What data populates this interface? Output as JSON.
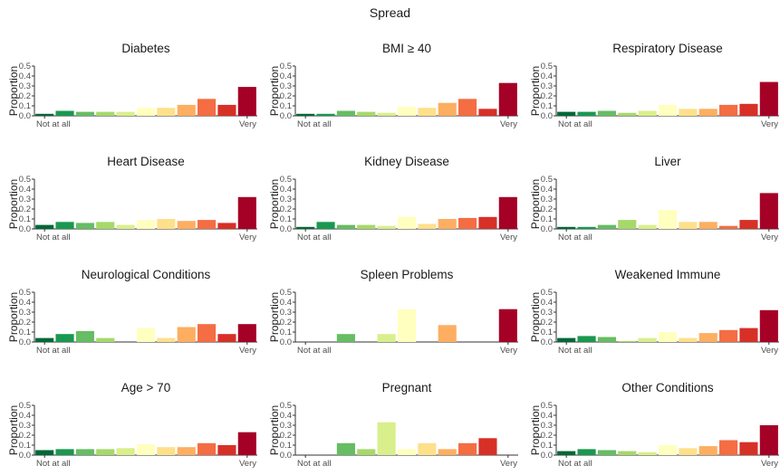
{
  "title": "Spread",
  "chart_data": {
    "type": "bar",
    "ylabel": "Proportion",
    "ylim": [
      0,
      0.5
    ],
    "yticks": [
      "0.0",
      "0.1",
      "0.2",
      "0.3",
      "0.4",
      "0.5"
    ],
    "x_start_label": "Not at all",
    "x_end_label": "Very",
    "categories": [
      1,
      2,
      3,
      4,
      5,
      6,
      7,
      8,
      9,
      10,
      11
    ],
    "colors": [
      "#006837",
      "#1a9850",
      "#66bd63",
      "#a6d96a",
      "#d9ef8b",
      "#ffffbf",
      "#fee08b",
      "#fdae61",
      "#f46d43",
      "#d73027",
      "#a50026"
    ],
    "grid": false,
    "panels": [
      {
        "title": "Diabetes",
        "values": [
          0.02,
          0.05,
          0.04,
          0.04,
          0.04,
          0.08,
          0.08,
          0.11,
          0.17,
          0.11,
          0.29
        ]
      },
      {
        "title": "BMI ≥ 40",
        "values": [
          0.02,
          0.02,
          0.05,
          0.04,
          0.03,
          0.09,
          0.08,
          0.13,
          0.17,
          0.07,
          0.33
        ]
      },
      {
        "title": "Respiratory Disease",
        "values": [
          0.04,
          0.04,
          0.05,
          0.03,
          0.05,
          0.11,
          0.07,
          0.07,
          0.11,
          0.12,
          0.34
        ]
      },
      {
        "title": "Heart Disease",
        "values": [
          0.04,
          0.07,
          0.06,
          0.07,
          0.04,
          0.09,
          0.1,
          0.08,
          0.09,
          0.06,
          0.32
        ]
      },
      {
        "title": "Kidney Disease",
        "values": [
          0.02,
          0.07,
          0.04,
          0.04,
          0.03,
          0.12,
          0.05,
          0.1,
          0.11,
          0.12,
          0.32
        ]
      },
      {
        "title": "Liver",
        "values": [
          0.02,
          0.02,
          0.04,
          0.09,
          0.04,
          0.19,
          0.07,
          0.07,
          0.03,
          0.09,
          0.36
        ]
      },
      {
        "title": "Neurological Conditions",
        "values": [
          0.04,
          0.08,
          0.11,
          0.04,
          0.0,
          0.14,
          0.04,
          0.15,
          0.18,
          0.08,
          0.18
        ]
      },
      {
        "title": "Spleen Problems",
        "values": [
          0.0,
          0.0,
          0.08,
          0.0,
          0.08,
          0.33,
          0.0,
          0.17,
          0.0,
          0.0,
          0.33
        ]
      },
      {
        "title": "Weakened Immune",
        "values": [
          0.04,
          0.06,
          0.05,
          0.01,
          0.04,
          0.1,
          0.04,
          0.09,
          0.12,
          0.14,
          0.32
        ]
      },
      {
        "title": "Age > 70",
        "values": [
          0.05,
          0.06,
          0.06,
          0.06,
          0.07,
          0.11,
          0.08,
          0.08,
          0.12,
          0.1,
          0.23
        ]
      },
      {
        "title": "Pregnant",
        "values": [
          0.0,
          0.0,
          0.12,
          0.06,
          0.33,
          0.06,
          0.12,
          0.06,
          0.12,
          0.17,
          0.0
        ]
      },
      {
        "title": "Other Conditions",
        "values": [
          0.04,
          0.06,
          0.05,
          0.04,
          0.03,
          0.1,
          0.07,
          0.09,
          0.15,
          0.13,
          0.3
        ]
      }
    ]
  }
}
